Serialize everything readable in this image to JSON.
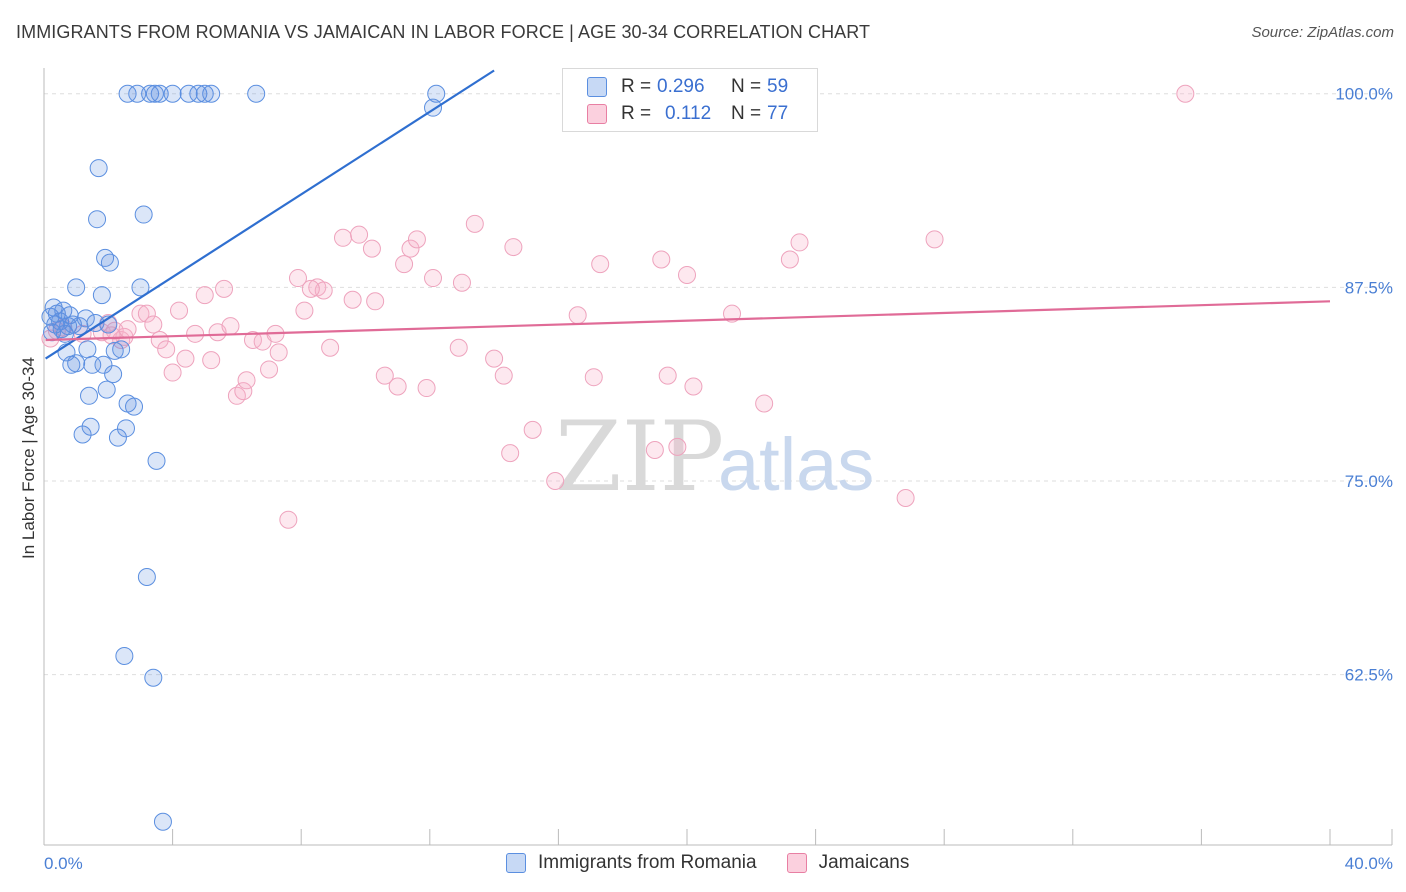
{
  "title": "IMMIGRANTS FROM ROMANIA VS JAMAICAN IN LABOR FORCE | AGE 30-34 CORRELATION CHART",
  "source": "Source: ZipAtlas.com",
  "watermark": {
    "zip": "ZIP",
    "atlas": "atlas"
  },
  "legend": {
    "r_label": "R =",
    "n_label": "N =",
    "rows": [
      {
        "r": "0.296",
        "n": "59",
        "color": "#5b8fe0"
      },
      {
        "r": "0.112",
        "n": "77",
        "color": "#e87fa3"
      }
    ]
  },
  "bottom_legend": [
    "Immigrants from Romania",
    "Jamaicans"
  ],
  "chart_data": {
    "type": "scatter",
    "title": "IMMIGRANTS FROM ROMANIA VS JAMAICAN IN LABOR FORCE | AGE 30-34 CORRELATION CHART",
    "xlabel": "",
    "ylabel": "In Labor Force | Age 30-34",
    "xlim": [
      0,
      40
    ],
    "ylim": [
      51.5,
      102.5
    ],
    "x_tick_labels": [
      "0.0%",
      "40.0%"
    ],
    "y_ticks": [
      62.5,
      75.0,
      87.5,
      100.0
    ],
    "y_tick_labels": [
      "62.5%",
      "75.0%",
      "87.5%",
      "100.0%"
    ],
    "series": [
      {
        "name": "Immigrants from Romania",
        "color": "#5b8fe0",
        "trend": {
          "x": [
            0.05,
            14.0
          ],
          "y": [
            82.9,
            101.5
          ]
        },
        "points": [
          [
            0.2,
            85.6
          ],
          [
            0.25,
            84.6
          ],
          [
            0.3,
            86.2
          ],
          [
            0.35,
            85.1
          ],
          [
            0.4,
            85.8
          ],
          [
            0.5,
            85.3
          ],
          [
            0.55,
            84.8
          ],
          [
            0.6,
            86.0
          ],
          [
            0.65,
            84.5
          ],
          [
            0.7,
            83.3
          ],
          [
            0.75,
            85.0
          ],
          [
            0.8,
            85.7
          ],
          [
            0.85,
            82.5
          ],
          [
            0.9,
            85.1
          ],
          [
            1.0,
            87.5
          ],
          [
            1.0,
            82.6
          ],
          [
            1.1,
            85.0
          ],
          [
            1.2,
            78.0
          ],
          [
            1.3,
            85.5
          ],
          [
            1.35,
            83.5
          ],
          [
            1.4,
            80.5
          ],
          [
            1.45,
            78.5
          ],
          [
            1.5,
            82.5
          ],
          [
            1.6,
            85.2
          ],
          [
            1.65,
            91.9
          ],
          [
            1.7,
            95.2
          ],
          [
            1.8,
            87.0
          ],
          [
            1.85,
            82.5
          ],
          [
            1.9,
            89.4
          ],
          [
            1.95,
            80.9
          ],
          [
            2.0,
            85.1
          ],
          [
            2.05,
            89.1
          ],
          [
            2.15,
            81.9
          ],
          [
            2.2,
            83.4
          ],
          [
            2.3,
            77.8
          ],
          [
            2.4,
            83.5
          ],
          [
            2.5,
            63.7
          ],
          [
            2.55,
            78.4
          ],
          [
            2.6,
            80.0
          ],
          [
            2.8,
            79.8
          ],
          [
            3.0,
            87.5
          ],
          [
            3.1,
            92.2
          ],
          [
            3.2,
            68.8
          ],
          [
            3.4,
            62.3
          ],
          [
            3.5,
            76.3
          ],
          [
            3.7,
            53.0
          ],
          [
            2.6,
            100.0
          ],
          [
            2.9,
            100.0
          ],
          [
            3.3,
            100.0
          ],
          [
            3.6,
            100.0
          ],
          [
            4.0,
            100.0
          ],
          [
            4.5,
            100.0
          ],
          [
            4.8,
            100.0
          ],
          [
            5.2,
            100.0
          ],
          [
            6.6,
            100.0
          ],
          [
            12.2,
            100.0
          ],
          [
            12.1,
            99.1
          ],
          [
            3.45,
            100.0
          ],
          [
            5.0,
            100.0
          ]
        ]
      },
      {
        "name": "Jamaicans",
        "color": "#e87fa3",
        "trend": {
          "x": [
            0.05,
            40.0
          ],
          "y": [
            84.1,
            86.6
          ]
        },
        "points": [
          [
            0.2,
            84.2
          ],
          [
            0.4,
            84.7
          ],
          [
            0.6,
            84.9
          ],
          [
            1.2,
            84.5
          ],
          [
            1.8,
            84.6
          ],
          [
            2.0,
            85.2
          ],
          [
            2.2,
            84.7
          ],
          [
            2.4,
            84.1
          ],
          [
            2.5,
            84.3
          ],
          [
            2.6,
            84.8
          ],
          [
            3.0,
            85.8
          ],
          [
            3.2,
            85.8
          ],
          [
            3.4,
            85.1
          ],
          [
            3.6,
            84.1
          ],
          [
            3.8,
            83.5
          ],
          [
            4.0,
            82.0
          ],
          [
            4.2,
            86.0
          ],
          [
            4.4,
            82.9
          ],
          [
            4.7,
            84.5
          ],
          [
            5.0,
            87.0
          ],
          [
            5.2,
            82.8
          ],
          [
            5.4,
            84.6
          ],
          [
            5.6,
            87.4
          ],
          [
            5.8,
            85.0
          ],
          [
            6.0,
            80.5
          ],
          [
            6.2,
            80.8
          ],
          [
            6.5,
            84.1
          ],
          [
            6.8,
            84.0
          ],
          [
            7.0,
            82.2
          ],
          [
            7.2,
            84.5
          ],
          [
            7.3,
            83.3
          ],
          [
            7.6,
            72.5
          ],
          [
            7.9,
            88.1
          ],
          [
            8.1,
            86.0
          ],
          [
            8.5,
            87.5
          ],
          [
            8.7,
            87.3
          ],
          [
            8.9,
            83.6
          ],
          [
            9.3,
            90.7
          ],
          [
            9.6,
            86.7
          ],
          [
            9.8,
            90.9
          ],
          [
            10.2,
            90.0
          ],
          [
            10.3,
            86.6
          ],
          [
            10.6,
            81.8
          ],
          [
            11.0,
            81.1
          ],
          [
            11.2,
            89.0
          ],
          [
            11.4,
            90.0
          ],
          [
            11.6,
            90.6
          ],
          [
            11.9,
            81.0
          ],
          [
            12.1,
            88.1
          ],
          [
            12.9,
            83.6
          ],
          [
            13.0,
            87.8
          ],
          [
            13.4,
            91.6
          ],
          [
            14.0,
            82.9
          ],
          [
            14.3,
            81.8
          ],
          [
            14.5,
            76.8
          ],
          [
            14.6,
            90.1
          ],
          [
            15.2,
            78.3
          ],
          [
            15.9,
            75.0
          ],
          [
            16.6,
            85.7
          ],
          [
            17.1,
            81.7
          ],
          [
            17.3,
            89.0
          ],
          [
            19.0,
            77.0
          ],
          [
            19.2,
            89.3
          ],
          [
            19.4,
            81.8
          ],
          [
            19.7,
            77.2
          ],
          [
            20.0,
            88.3
          ],
          [
            20.2,
            81.1
          ],
          [
            21.4,
            85.8
          ],
          [
            22.4,
            80.0
          ],
          [
            23.2,
            89.3
          ],
          [
            23.5,
            90.4
          ],
          [
            26.8,
            73.9
          ],
          [
            27.7,
            90.6
          ],
          [
            35.5,
            100.0
          ],
          [
            2.1,
            84.4
          ],
          [
            6.3,
            81.5
          ],
          [
            8.3,
            87.4
          ]
        ]
      }
    ]
  }
}
